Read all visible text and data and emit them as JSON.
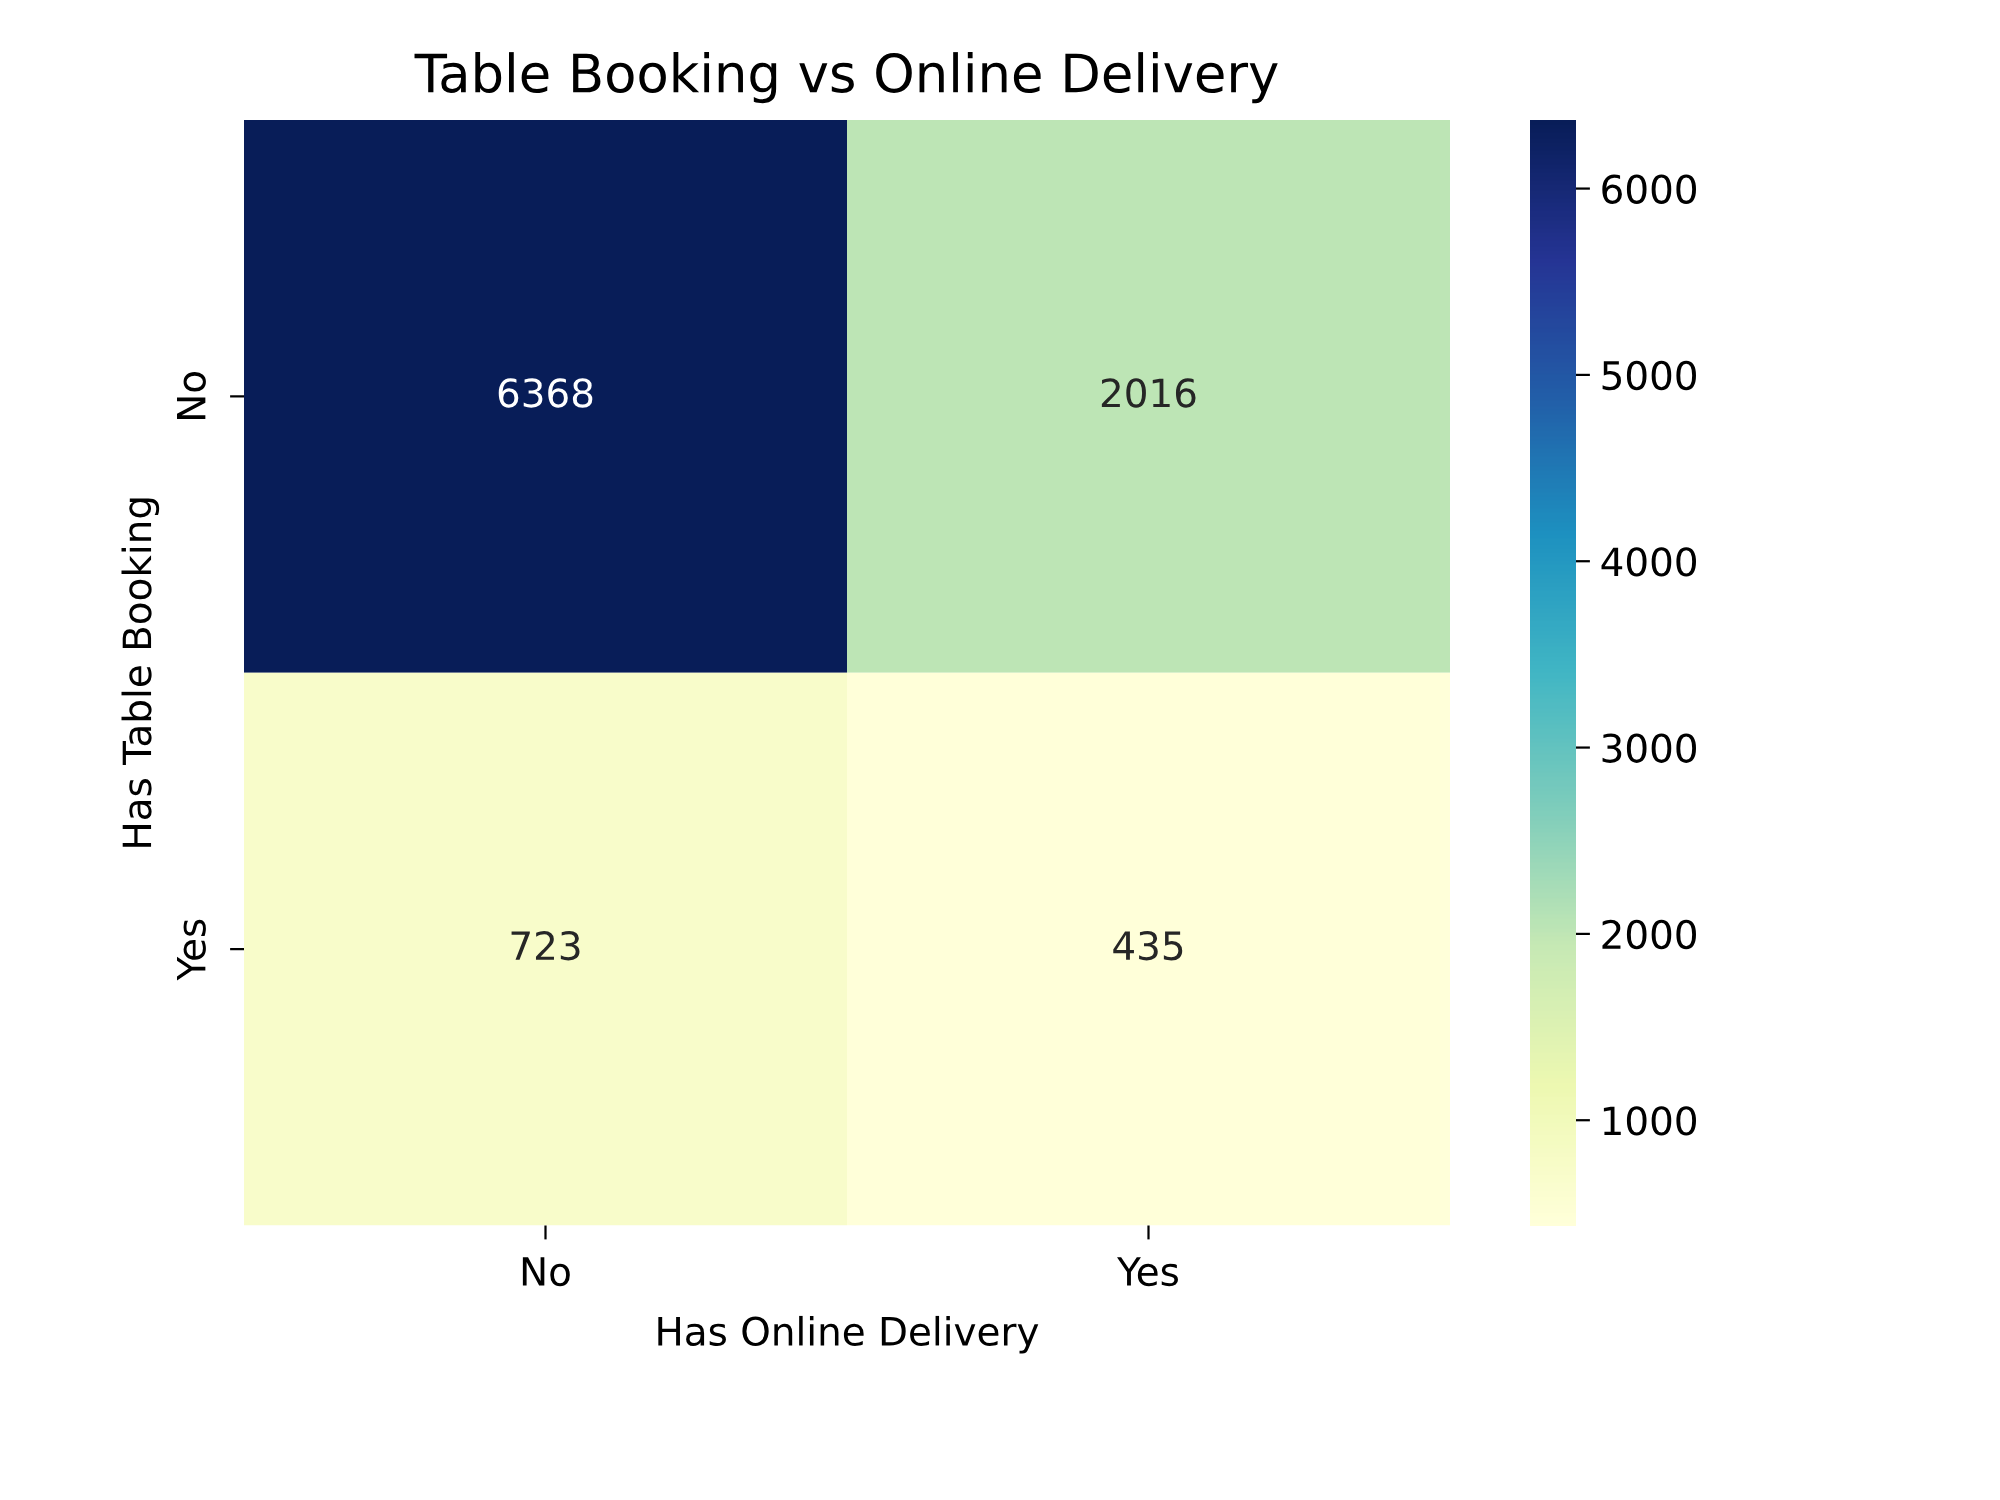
{
  "chart_data": {
    "type": "heatmap",
    "title": "Table Booking vs Online Delivery",
    "xlabel": "Has Online Delivery",
    "ylabel": "Has Table Booking",
    "categories": [
      "No",
      "Yes"
    ],
    "y_categories": [
      "No",
      "Yes"
    ],
    "cells": [
      [
        6368,
        2016
      ],
      [
        723,
        435
      ]
    ],
    "data_labels": true,
    "colors": [
      "#ffffd9",
      "#edf8b1",
      "#c7e9b4",
      "#7fcdbb",
      "#41b6c4",
      "#1d91c0",
      "#225ea8",
      "#253494",
      "#081d58"
    ],
    "clim": [
      435,
      6368
    ],
    "cticks": [
      1000,
      2000,
      3000,
      4000,
      5000,
      6000
    ]
  }
}
